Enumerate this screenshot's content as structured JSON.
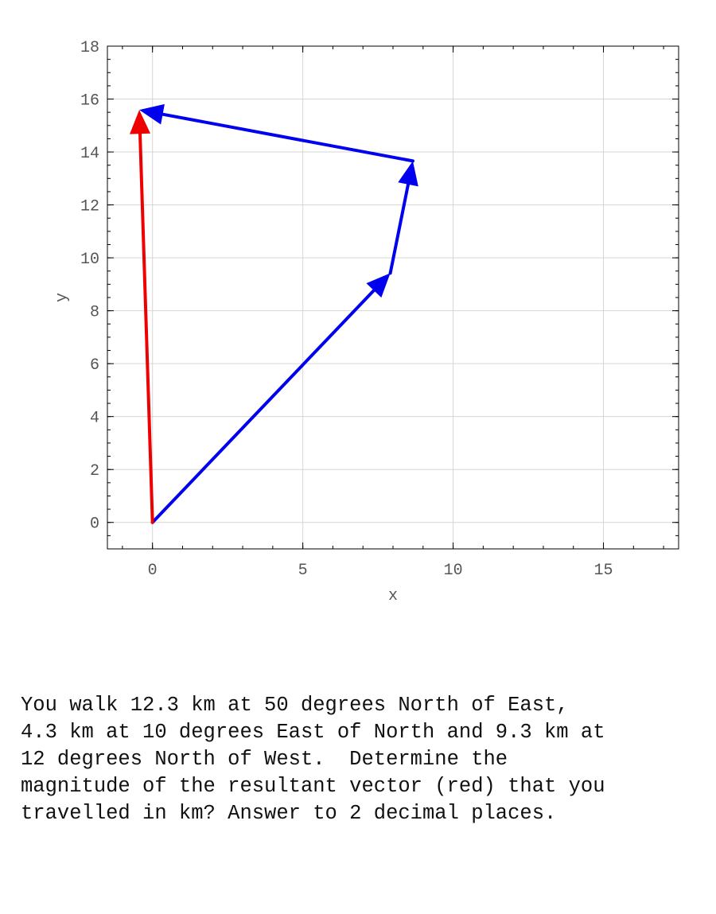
{
  "chart_data": {
    "type": "vector-plot",
    "xlabel": "x",
    "ylabel": "y",
    "xlim": [
      -1.5,
      17.5
    ],
    "ylim": [
      -1,
      18
    ],
    "xticks": [
      0,
      5,
      10,
      15
    ],
    "yticks": [
      0,
      2,
      4,
      6,
      8,
      10,
      12,
      14,
      16,
      18
    ],
    "grid": true,
    "vectors": [
      {
        "from": [
          0,
          0
        ],
        "to": [
          7.91,
          9.42
        ],
        "color": "#0000ee"
      },
      {
        "from": [
          7.91,
          9.42
        ],
        "to": [
          8.66,
          13.66
        ],
        "color": "#0000ee"
      },
      {
        "from": [
          8.66,
          13.66
        ],
        "to": [
          -0.44,
          15.59
        ],
        "color": "#0000ee"
      },
      {
        "from": [
          0,
          0
        ],
        "to": [
          -0.44,
          15.59
        ],
        "color": "#ee0000"
      }
    ]
  },
  "question": {
    "lines": [
      "You walk 12.3 km at 50 degrees North of East,",
      "4.3 km at 10 degrees East of North and 9.3 km at",
      "12 degrees North of West.  Determine the",
      "magnitude of the resultant vector (red) that you",
      "travelled in km? Answer to 2 decimal places."
    ]
  }
}
